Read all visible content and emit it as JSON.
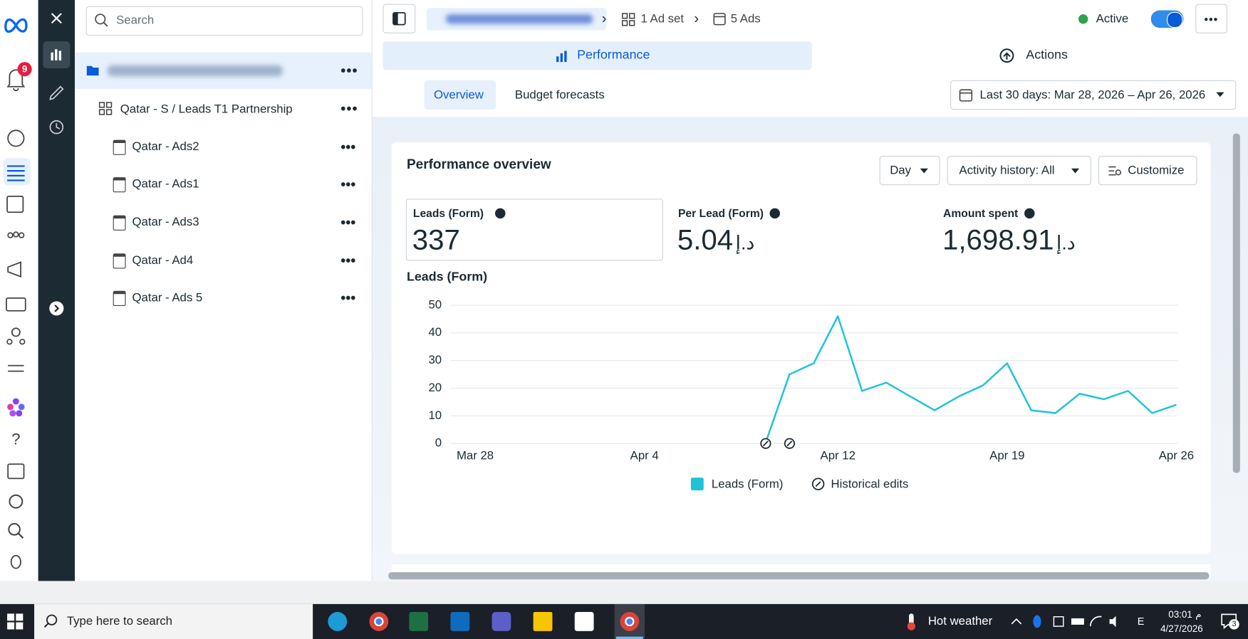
{
  "sidebar": {
    "notification_count": "9"
  },
  "tree": {
    "search_placeholder": "Search",
    "ad_set": "Qatar - S / Leads T1 Partnership",
    "ads": [
      "Qatar - Ads2",
      "Qatar - Ads1",
      "Qatar - Ads3",
      "Qatar - Ad4",
      "Qatar - Ads 5"
    ]
  },
  "header": {
    "breadcrumb_ad_set": "1 Ad set",
    "breadcrumb_ads": "5 Ads",
    "status": "Active"
  },
  "tabs": [
    "Performance",
    "Actions"
  ],
  "subtabs": [
    "Overview",
    "Budget forecasts"
  ],
  "date_range": "Last 30 days: Mar 28, 2026 – Apr 26, 2026",
  "panel": {
    "title": "Performance overview",
    "controls": [
      "Day",
      "Activity history: All",
      "Customize"
    ],
    "metrics": [
      {
        "label": "Leads (Form)",
        "value": "337"
      },
      {
        "label": "Per Lead (Form)",
        "value": "5.04",
        "currency": "د.إ"
      },
      {
        "label": "Amount spent",
        "value": "1,698.91",
        "currency": "د.إ"
      }
    ]
  },
  "chart_data": {
    "type": "line",
    "title": "Leads (Form)",
    "categories": [
      "Mar 28",
      null,
      null,
      null,
      null,
      null,
      null,
      "Apr 4",
      null,
      null,
      null,
      null,
      null,
      null,
      null,
      "Apr 12",
      null,
      null,
      null,
      null,
      null,
      null,
      "Apr 19",
      null,
      null,
      null,
      null,
      null,
      null,
      "Apr 26"
    ],
    "series": [
      {
        "name": "Leads (Form)",
        "color": "#1ec3d8",
        "values": [
          null,
          null,
          null,
          null,
          null,
          null,
          null,
          null,
          null,
          null,
          null,
          null,
          0,
          25,
          29,
          46,
          19,
          22,
          17,
          12,
          17,
          21,
          29,
          12,
          11,
          18,
          16,
          19,
          11,
          14
        ]
      }
    ],
    "annotations": [
      "Historical edits"
    ],
    "ylim": [
      0,
      50
    ],
    "yticks": [
      0,
      10,
      20,
      30,
      40,
      50
    ],
    "grid": true
  },
  "taskbar": {
    "search": "Type here to search",
    "weather": "Hot weather",
    "language": "E",
    "time": "03:01",
    "period": "م",
    "date": "4/27/2026",
    "notifications": "3"
  }
}
